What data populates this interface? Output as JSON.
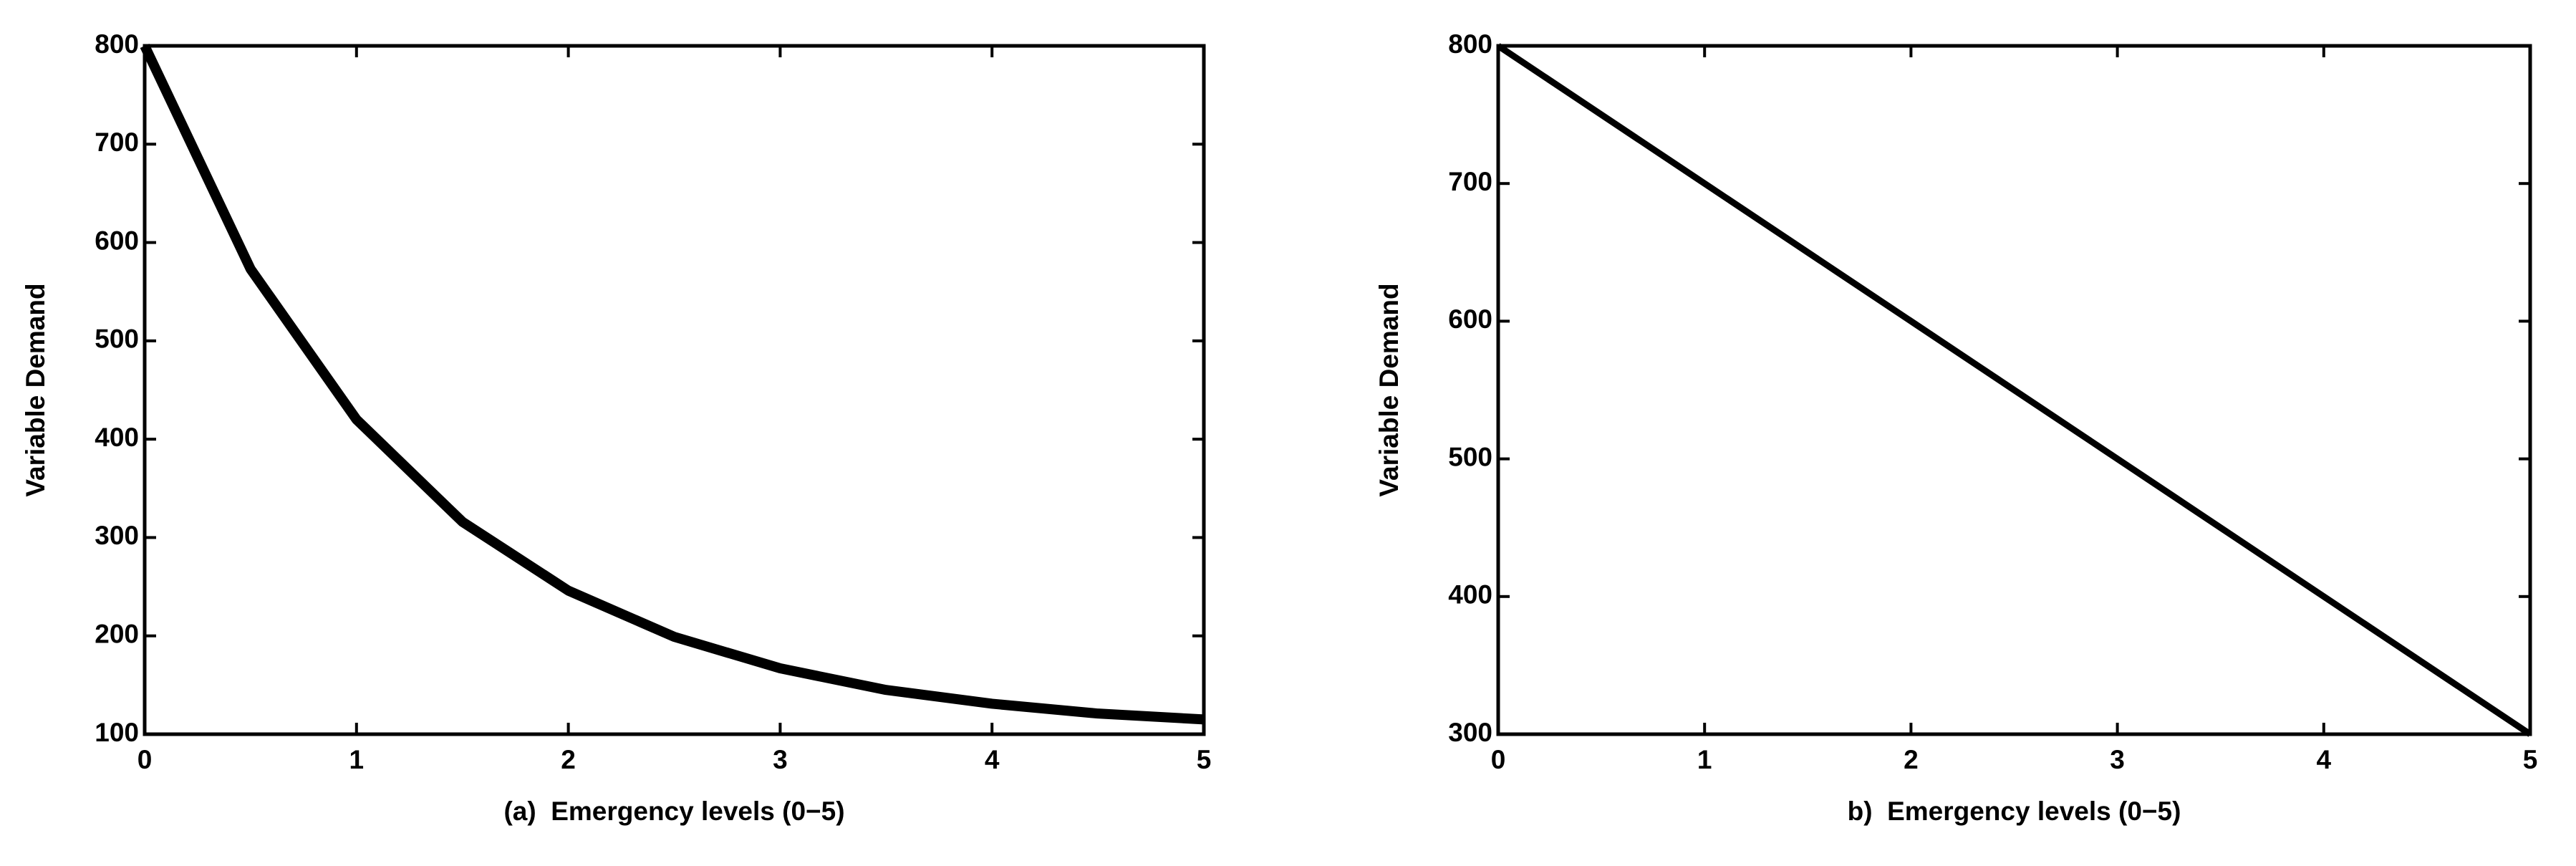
{
  "chart_data": [
    {
      "type": "line",
      "xlabel": "(a)  Emergency levels (0−5)",
      "ylabel": "Variable Demand",
      "x": [
        0,
        0.5,
        1,
        1.5,
        2,
        2.5,
        3,
        3.5,
        4,
        4.5,
        5
      ],
      "series": [
        {
          "color": "#000000",
          "values": [
            800,
            573,
            420,
            316,
            246,
            199,
            167,
            145,
            131,
            121,
            115
          ]
        }
      ],
      "xlim": [
        0,
        5
      ],
      "xticks": [
        0,
        1,
        2,
        3,
        4,
        5
      ],
      "ylim": [
        100,
        800
      ],
      "yticks": [
        100,
        200,
        300,
        400,
        500,
        600,
        700,
        800
      ]
    },
    {
      "type": "line",
      "xlabel": "b)  Emergency levels (0−5)",
      "ylabel": "Variable Demand",
      "x": [
        0,
        5
      ],
      "series": [
        {
          "color": "#000000",
          "values": [
            800,
            300
          ]
        }
      ],
      "xlim": [
        0,
        5
      ],
      "xticks": [
        0,
        1,
        2,
        3,
        4,
        5
      ],
      "ylim": [
        300,
        800
      ],
      "yticks": [
        300,
        400,
        500,
        600,
        700,
        800
      ]
    }
  ]
}
